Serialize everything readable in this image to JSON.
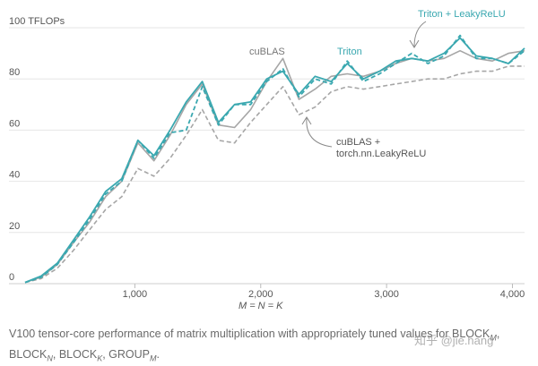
{
  "chart_data": {
    "type": "line",
    "xlabel": "M = N = K",
    "ylabel": "",
    "y_unit_label": "100 TFLOPs",
    "xlim": [
      0,
      4096
    ],
    "ylim": [
      0,
      100
    ],
    "x_ticks": [
      1000,
      2000,
      3000,
      4000
    ],
    "x_tick_labels": [
      "1,000",
      "2,000",
      "3,000",
      "4,000"
    ],
    "y_ticks": [
      0,
      20,
      40,
      60,
      80,
      100
    ],
    "y_tick_labels": [
      "0",
      "20",
      "40",
      "60",
      "80",
      "100 TFLOPs"
    ],
    "grid": "horizontal",
    "x": [
      128,
      256,
      384,
      512,
      640,
      768,
      896,
      1024,
      1152,
      1280,
      1408,
      1536,
      1664,
      1792,
      1920,
      2048,
      2176,
      2304,
      2432,
      2560,
      2688,
      2816,
      2944,
      3072,
      3200,
      3328,
      3456,
      3584,
      3712,
      3840,
      3968,
      4096
    ],
    "series": [
      {
        "name": "cuBLAS",
        "color": "#a6a6a6",
        "dash": "solid",
        "values": [
          0.5,
          2.5,
          7.5,
          16,
          24,
          34,
          40,
          55,
          48,
          58,
          70,
          78,
          62,
          61,
          68,
          79,
          88,
          72,
          76,
          81,
          82,
          81,
          83,
          86,
          88,
          87,
          88,
          91,
          88,
          87,
          90,
          91
        ]
      },
      {
        "name": "Triton",
        "color": "#3aa8b0",
        "dash": "solid",
        "values": [
          0.5,
          3,
          8,
          17,
          26,
          36,
          41,
          56,
          50,
          60,
          71,
          79,
          63,
          70,
          71,
          80,
          83,
          74,
          81,
          79,
          86,
          80,
          83,
          87,
          88,
          87,
          90,
          96,
          89,
          88,
          86,
          92
        ]
      },
      {
        "name": "Triton + LeakyReLU",
        "color": "#3aa8b0",
        "dash": "dashed",
        "values": [
          0.5,
          2.5,
          7.5,
          16,
          25,
          35,
          40,
          56,
          49,
          59,
          60,
          77,
          62,
          70,
          70,
          79,
          84,
          73,
          80,
          78,
          87,
          79,
          82,
          86,
          90,
          86,
          89,
          97,
          88,
          88,
          86,
          91
        ]
      },
      {
        "name": "cuBLAS + torch.nn.LeakyReLU",
        "color": "#a6a6a6",
        "dash": "dashed",
        "values": [
          0.5,
          2,
          6,
          13,
          21,
          29,
          34,
          45,
          42,
          49,
          58,
          68,
          56,
          55,
          63,
          70,
          77,
          66,
          69,
          75,
          77,
          76,
          77,
          78,
          79,
          80,
          80,
          82,
          83,
          83,
          85,
          85
        ]
      }
    ],
    "annotations": [
      {
        "text": "cuBLAS",
        "color": "#777777"
      },
      {
        "text": "Triton",
        "color": "#3aa8b0"
      },
      {
        "text": "Triton + LeakyReLU",
        "color": "#3aa8b0"
      },
      {
        "text": "cuBLAS +",
        "color": "#555555"
      },
      {
        "text": "torch.nn.LeakyReLU",
        "color": "#555555"
      }
    ]
  },
  "caption": {
    "main": "V100 tensor-core performance of matrix multiplication with appropriately tuned values for BLOCK",
    "sub_m": "M",
    "sep": ",",
    "line2_block_n": "BLOCK",
    "sub_n": "N",
    "line2_block_k": ", BLOCK",
    "sub_k": "K",
    "line2_group": ", GROUP",
    "sub_group": "M",
    "end": "."
  },
  "watermark": "知乎 @jie.hang"
}
